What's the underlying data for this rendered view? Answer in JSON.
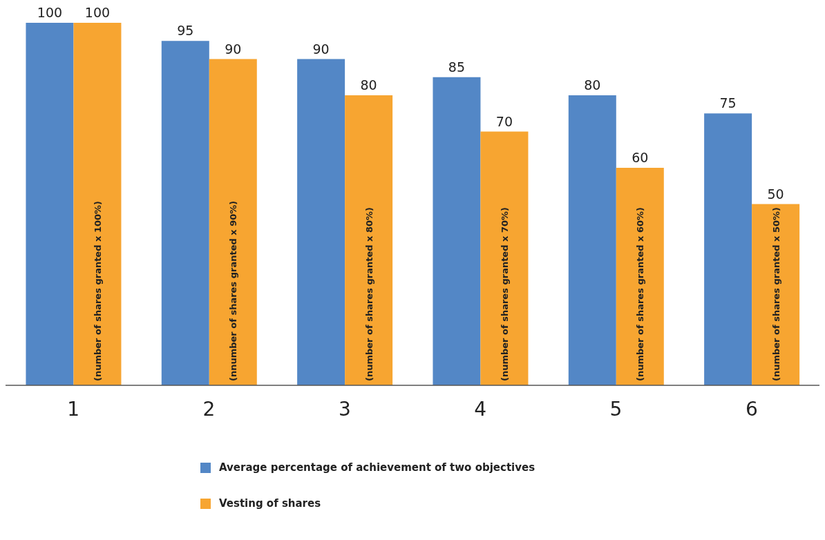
{
  "chart_data": {
    "type": "bar",
    "categories": [
      "1",
      "2",
      "3",
      "4",
      "5",
      "6"
    ],
    "series": [
      {
        "name": "Average percentage of achievement of two objectives",
        "color": "#5387c6",
        "values": [
          100,
          95,
          90,
          85,
          80,
          75
        ]
      },
      {
        "name": "Vesting of shares",
        "color": "#f7a531",
        "values": [
          100,
          90,
          80,
          70,
          60,
          50
        ]
      }
    ],
    "data_labels": true,
    "legend": "bottom",
    "grid": false,
    "annotations": [
      {
        "text": "(number of shares granted x 100%)",
        "x": "1"
      },
      {
        "text": "(nnumber of shares granted x 90%)",
        "x": "2"
      },
      {
        "text": "(number of shares granted x 80%)",
        "x": "3"
      },
      {
        "text": "(number of shares granted x 70%)",
        "x": "4"
      },
      {
        "text": "(number of shares granted x 60%)",
        "x": "5"
      },
      {
        "text": "(number of shares granted x 50%)",
        "x": "6"
      }
    ]
  }
}
